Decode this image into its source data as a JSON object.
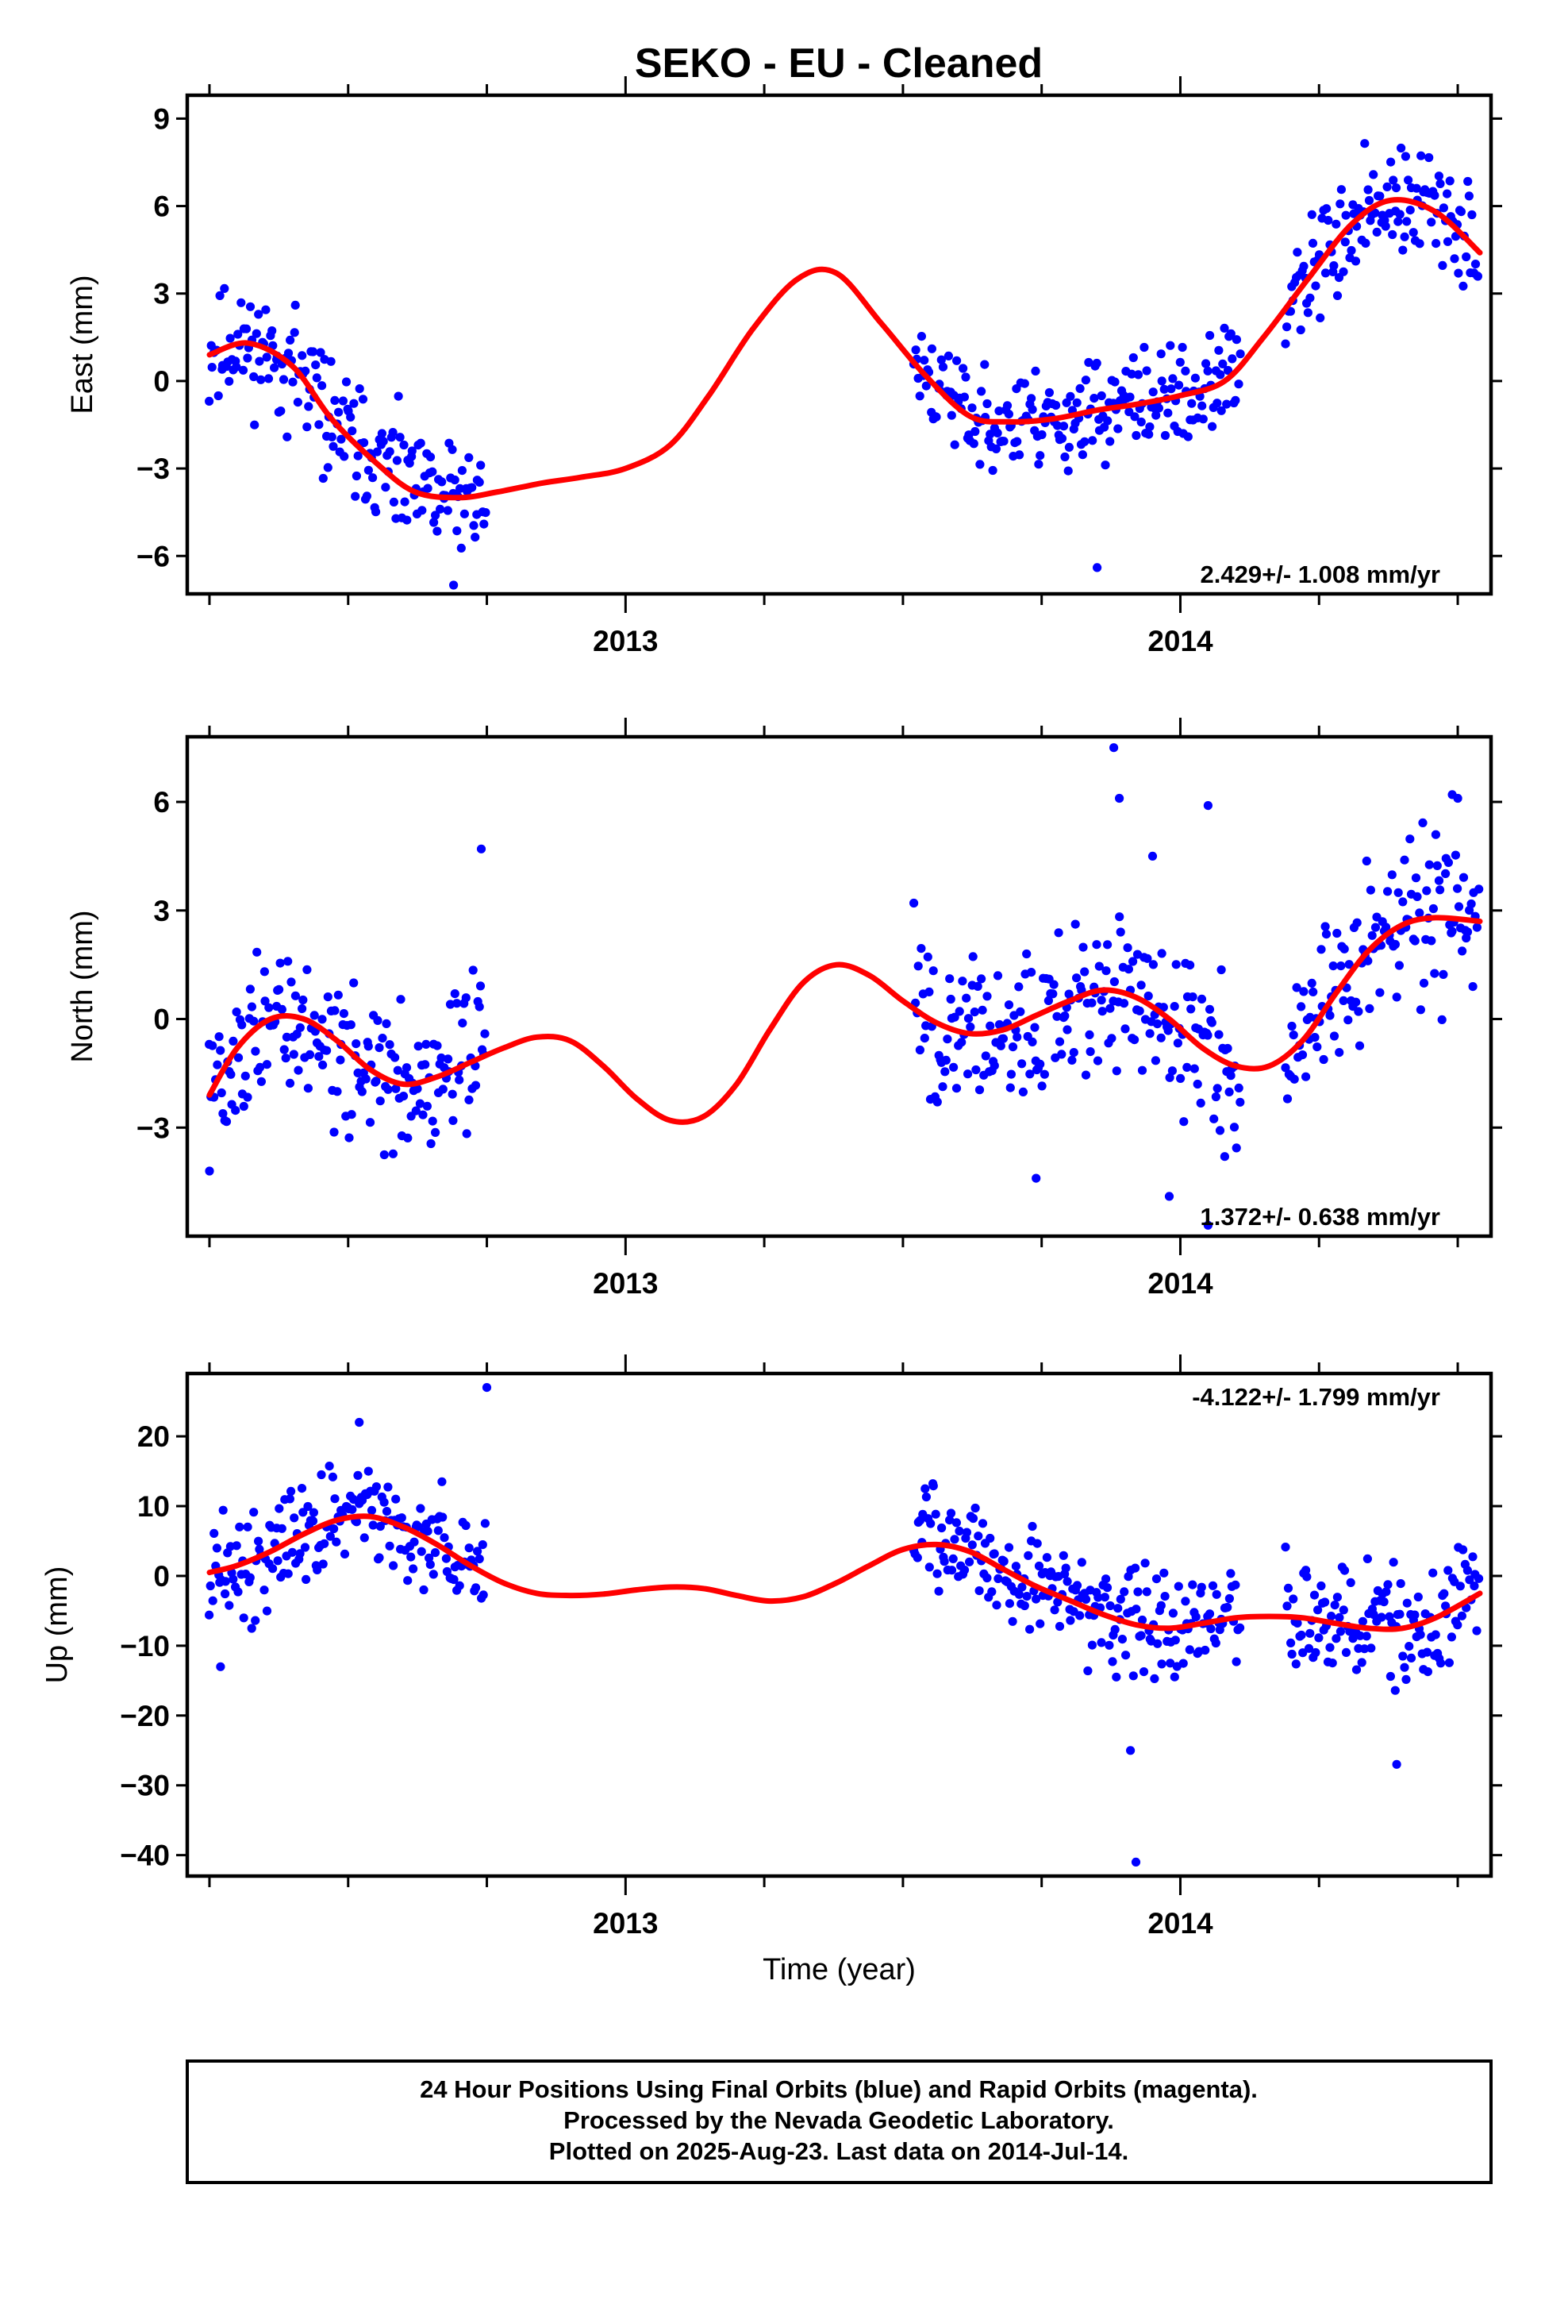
{
  "title": "SEKO  - EU - Cleaned",
  "colors": {
    "final_orbits": "#0000ff",
    "model": "#ff0000",
    "frame": "#000000"
  },
  "footer": {
    "line1": "24 Hour Positions Using Final Orbits (blue) and Rapid Orbits (magenta).",
    "line2": "Processed by the Nevada Geodetic Laboratory.",
    "line3": "Plotted on 2025-Aug-23. Last data on 2014-Jul-14."
  },
  "chart_data": [
    {
      "type": "scatter",
      "id": "east",
      "ylabel": "East (mm)",
      "xlabel": "",
      "xlim": [
        2012.21,
        2014.56
      ],
      "ylim": [
        -7.3,
        9.8
      ],
      "yticks": [
        9,
        6,
        3,
        0,
        -3,
        -6
      ],
      "ytick_labels": [
        "9",
        "6",
        "3",
        "0",
        "−3",
        "−6"
      ],
      "xticks": [
        2013,
        2014
      ],
      "xtick_labels": [
        "2013",
        "2014"
      ],
      "rate_label": "2.429+/- 1.008 mm/yr",
      "rate_position": "bottom-right",
      "segments": [
        {
          "from": 2012.25,
          "to": 2012.75,
          "amp": 1.0,
          "seed": 11
        },
        {
          "from": 2013.52,
          "to": 2014.11,
          "amp": 0.85,
          "seed": 23
        },
        {
          "from": 2014.19,
          "to": 2014.54,
          "amp": 0.9,
          "seed": 37
        }
      ],
      "outliers": [
        {
          "x": 2013.85,
          "y": -6.4
        },
        {
          "x": 2012.69,
          "y": -7.0
        }
      ],
      "trend": {
        "name": "model",
        "x": [
          2012.25,
          2012.32,
          2012.4,
          2012.47,
          2012.55,
          2012.62,
          2012.7,
          2012.77,
          2012.85,
          2012.92,
          2013.0,
          2013.08,
          2013.15,
          2013.23,
          2013.31,
          2013.38,
          2013.46,
          2013.54,
          2013.62,
          2013.69,
          2013.77,
          2013.85,
          2013.92,
          2014.0,
          2014.08,
          2014.15,
          2014.23,
          2014.31,
          2014.38,
          2014.46,
          2014.54
        ],
        "y": [
          0.9,
          1.3,
          0.5,
          -1.3,
          -2.8,
          -3.8,
          -4.0,
          -3.8,
          -3.5,
          -3.3,
          -3.0,
          -2.2,
          -0.5,
          1.8,
          3.5,
          3.7,
          2.0,
          0.2,
          -1.2,
          -1.4,
          -1.3,
          -1.0,
          -0.8,
          -0.5,
          0.0,
          1.5,
          3.5,
          5.4,
          6.2,
          5.8,
          4.4
        ]
      }
    },
    {
      "type": "scatter",
      "id": "north",
      "ylabel": "North (mm)",
      "xlabel": "",
      "xlim": [
        2012.21,
        2014.56
      ],
      "ylim": [
        -6.0,
        7.8
      ],
      "yticks": [
        6,
        3,
        0,
        -3
      ],
      "ytick_labels": [
        "6",
        "3",
        "0",
        "−3"
      ],
      "xticks": [
        2013,
        2014
      ],
      "xtick_labels": [
        "2013",
        "2014"
      ],
      "rate_label": "1.372+/- 0.638 mm/yr",
      "rate_position": "bottom-right",
      "segments": [
        {
          "from": 2012.25,
          "to": 2012.75,
          "amp": 1.0,
          "seed": 51
        },
        {
          "from": 2013.52,
          "to": 2014.11,
          "amp": 1.0,
          "seed": 63
        },
        {
          "from": 2014.19,
          "to": 2014.54,
          "amp": 1.1,
          "seed": 77
        }
      ],
      "outliers": [
        {
          "x": 2013.88,
          "y": 7.5
        },
        {
          "x": 2013.89,
          "y": 6.1
        },
        {
          "x": 2013.95,
          "y": 4.5
        },
        {
          "x": 2014.05,
          "y": 5.9
        },
        {
          "x": 2012.74,
          "y": 4.7
        },
        {
          "x": 2013.98,
          "y": -4.9
        },
        {
          "x": 2014.05,
          "y": -5.7
        },
        {
          "x": 2014.08,
          "y": -3.8
        },
        {
          "x": 2013.74,
          "y": -4.4
        },
        {
          "x": 2012.25,
          "y": -4.2
        },
        {
          "x": 2014.49,
          "y": 6.2
        },
        {
          "x": 2014.5,
          "y": 6.1
        }
      ],
      "trend": {
        "name": "model",
        "x": [
          2012.25,
          2012.3,
          2012.36,
          2012.42,
          2012.48,
          2012.54,
          2012.6,
          2012.66,
          2012.72,
          2012.78,
          2012.84,
          2012.9,
          2012.96,
          2013.02,
          2013.08,
          2013.14,
          2013.2,
          2013.26,
          2013.32,
          2013.38,
          2013.44,
          2013.5,
          2013.56,
          2013.62,
          2013.68,
          2013.74,
          2013.8,
          2013.86,
          2013.92,
          2013.98,
          2014.04,
          2014.1,
          2014.16,
          2014.22,
          2014.28,
          2014.34,
          2014.4,
          2014.46,
          2014.54
        ],
        "y": [
          -2.1,
          -0.8,
          0.0,
          0.0,
          -0.6,
          -1.4,
          -1.8,
          -1.6,
          -1.2,
          -0.8,
          -0.5,
          -0.6,
          -1.3,
          -2.2,
          -2.8,
          -2.7,
          -1.8,
          -0.3,
          1.0,
          1.5,
          1.2,
          0.5,
          -0.1,
          -0.4,
          -0.3,
          0.1,
          0.5,
          0.8,
          0.6,
          0.0,
          -0.8,
          -1.3,
          -1.3,
          -0.6,
          0.7,
          1.9,
          2.6,
          2.8,
          2.7
        ]
      }
    },
    {
      "type": "scatter",
      "id": "up",
      "ylabel": "Up (mm)",
      "xlabel": "Time (year)",
      "xlim": [
        2012.21,
        2014.56
      ],
      "ylim": [
        -43,
        29
      ],
      "yticks": [
        20,
        10,
        0,
        -10,
        -20,
        -30,
        -40
      ],
      "ytick_labels": [
        "20",
        "10",
        "0",
        "−10",
        "−20",
        "−30",
        "−40"
      ],
      "xticks": [
        2013,
        2014
      ],
      "xtick_labels": [
        "2013",
        "2014"
      ],
      "rate_label": "-4.122+/- 1.799 mm/yr",
      "rate_position": "top-right",
      "segments": [
        {
          "from": 2012.25,
          "to": 2012.75,
          "amp": 3.8,
          "seed": 91
        },
        {
          "from": 2013.52,
          "to": 2014.11,
          "amp": 3.8,
          "seed": 103
        },
        {
          "from": 2014.19,
          "to": 2014.54,
          "amp": 3.8,
          "seed": 117
        }
      ],
      "outliers": [
        {
          "x": 2012.52,
          "y": 22
        },
        {
          "x": 2012.75,
          "y": 27
        },
        {
          "x": 2013.91,
          "y": -25
        },
        {
          "x": 2013.92,
          "y": -41
        },
        {
          "x": 2014.39,
          "y": -27
        },
        {
          "x": 2012.27,
          "y": -13
        }
      ],
      "trend": {
        "name": "model",
        "x": [
          2012.25,
          2012.3,
          2012.36,
          2012.42,
          2012.48,
          2012.54,
          2012.6,
          2012.66,
          2012.72,
          2012.78,
          2012.84,
          2012.9,
          2012.96,
          2013.02,
          2013.08,
          2013.14,
          2013.2,
          2013.26,
          2013.32,
          2013.38,
          2013.44,
          2013.5,
          2013.56,
          2013.62,
          2013.68,
          2013.74,
          2013.8,
          2013.86,
          2013.92,
          2013.98,
          2014.04,
          2014.1,
          2014.16,
          2014.22,
          2014.28,
          2014.34,
          2014.4,
          2014.46,
          2014.54
        ],
        "y": [
          0.5,
          1.5,
          3.5,
          6.0,
          8.0,
          8.5,
          7.0,
          4.5,
          1.5,
          -1.0,
          -2.5,
          -2.8,
          -2.6,
          -2.0,
          -1.6,
          -1.8,
          -2.8,
          -3.6,
          -3.0,
          -1.0,
          1.5,
          3.8,
          4.5,
          3.5,
          1.0,
          -1.5,
          -3.5,
          -5.5,
          -7.0,
          -7.5,
          -6.8,
          -6.0,
          -5.8,
          -6.0,
          -6.8,
          -7.5,
          -7.5,
          -6.0,
          -2.5
        ]
      }
    }
  ]
}
